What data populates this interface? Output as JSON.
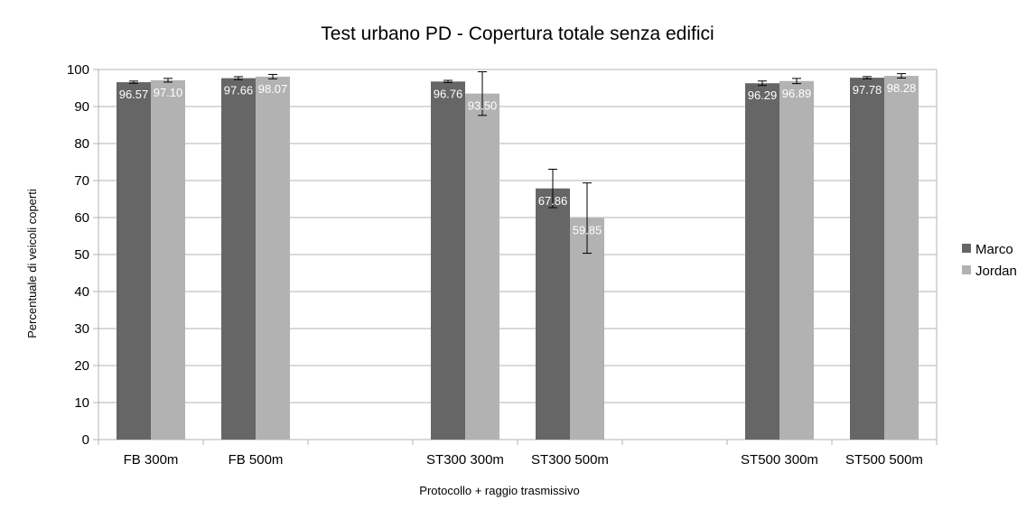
{
  "chart_data": {
    "type": "bar",
    "title": "Test urbano PD - Copertura totale senza edifici",
    "xlabel": "Protocollo + raggio trasmissivo",
    "ylabel": "Percentuale di veicoli coperti",
    "ylim": [
      0,
      100
    ],
    "yticks": [
      "0",
      "10",
      "20",
      "30",
      "40",
      "50",
      "60",
      "70",
      "80",
      "90",
      "100"
    ],
    "grid": true,
    "legend_position": "right",
    "categories": [
      "FB 300m",
      "FB 500m",
      "",
      "ST300 300m",
      "ST300 500m",
      "",
      "ST500 300m",
      "ST500 500m"
    ],
    "series": [
      {
        "name": "Marco",
        "color": "#666666",
        "values": [
          96.57,
          97.66,
          null,
          96.76,
          67.86,
          null,
          96.29,
          97.78
        ],
        "labels": [
          "96.57",
          "97.66",
          "",
          "96.76",
          "67.86",
          "",
          "96.29",
          "97.78"
        ],
        "error": [
          0.3,
          0.4,
          null,
          0.3,
          5.2,
          null,
          0.6,
          0.3
        ]
      },
      {
        "name": "Jordan",
        "color": "#b2b2b2",
        "values": [
          97.1,
          98.07,
          null,
          93.5,
          59.85,
          null,
          96.89,
          98.28
        ],
        "labels": [
          "97.10",
          "98.07",
          "",
          "93.50",
          "59.85",
          "",
          "96.89",
          "98.28"
        ],
        "error": [
          0.5,
          0.6,
          null,
          5.9,
          9.5,
          null,
          0.7,
          0.6
        ]
      }
    ]
  }
}
